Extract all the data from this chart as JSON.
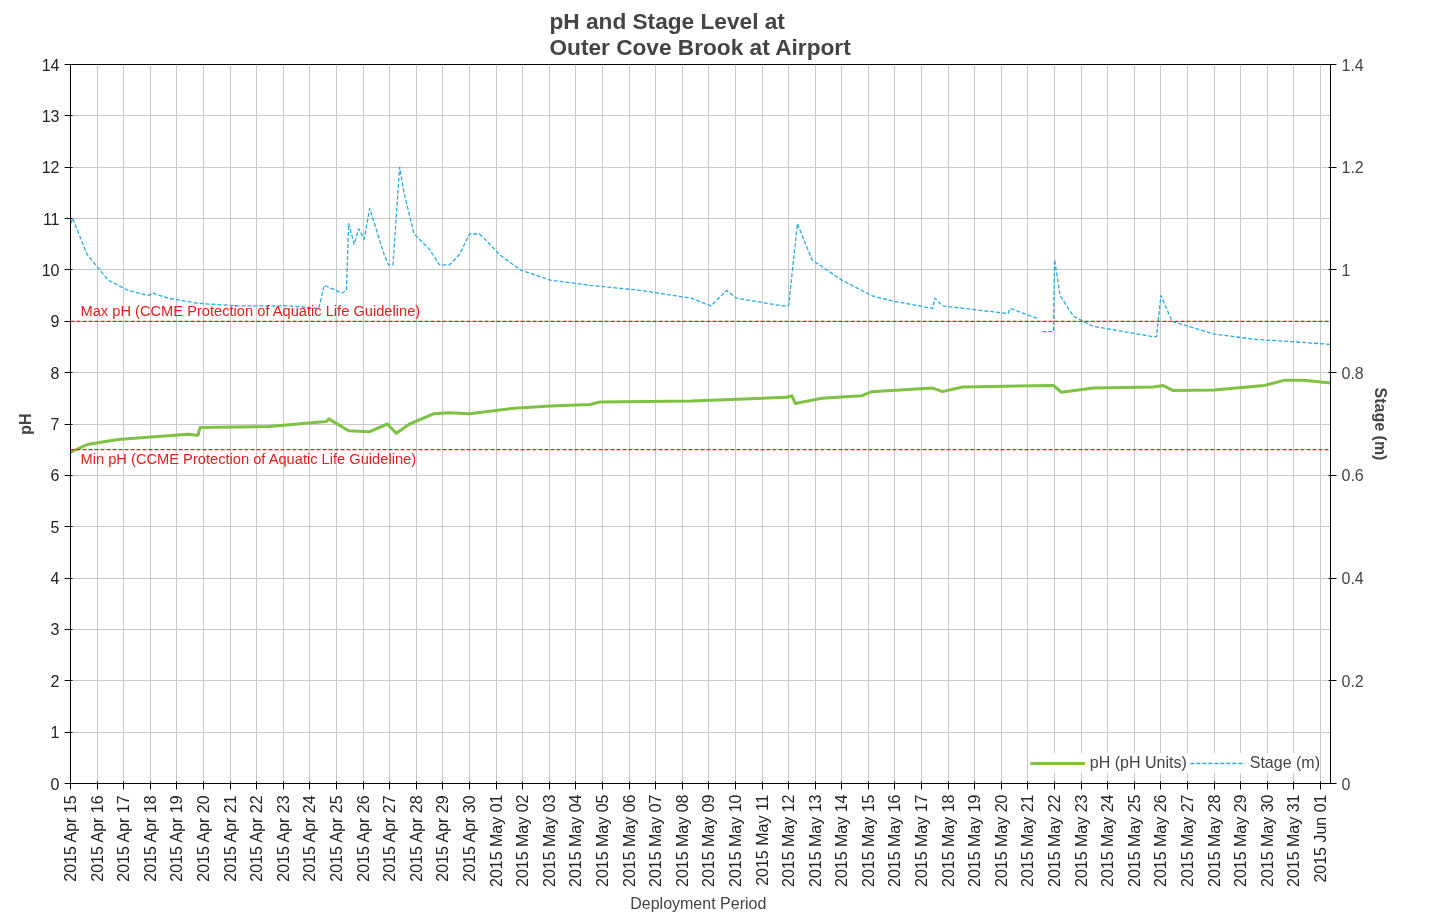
{
  "chart_data": {
    "type": "line",
    "title": "pH and Stage Level at\nOuter Cove Brook at Airport",
    "xlabel": "Deployment  Period",
    "ylabel": "pH",
    "y2label": "Stage (m)",
    "xlim": [
      "2015-04-15",
      "2015-06-01T09:00"
    ],
    "ylim": [
      0,
      14
    ],
    "y2lim": [
      0,
      1.4
    ],
    "yticks": [
      0,
      1,
      2,
      3,
      4,
      5,
      6,
      7,
      8,
      9,
      10,
      11,
      12,
      13,
      14
    ],
    "y2ticks": [
      0,
      0.2,
      0.4,
      0.6,
      0.8,
      1,
      1.2,
      1.4
    ],
    "xticks": [
      {
        "value": "2015-04-15",
        "label": "2015 Apr 15"
      },
      {
        "value": "2015-04-16",
        "label": "2015 Apr 16"
      },
      {
        "value": "2015-04-17",
        "label": "2015 Apr 17"
      },
      {
        "value": "2015-04-18",
        "label": "2015 Apr 18"
      },
      {
        "value": "2015-04-19",
        "label": "2015 Apr 19"
      },
      {
        "value": "2015-04-20",
        "label": "2015 Apr 20"
      },
      {
        "value": "2015-04-21",
        "label": "2015 Apr 21"
      },
      {
        "value": "2015-04-22",
        "label": "2015 Apr 22"
      },
      {
        "value": "2015-04-23",
        "label": "2015 Apr 23"
      },
      {
        "value": "2015-04-24",
        "label": "2015 Apr 24"
      },
      {
        "value": "2015-04-25",
        "label": "2015 Apr 25"
      },
      {
        "value": "2015-04-26",
        "label": "2015 Apr 26"
      },
      {
        "value": "2015-04-27",
        "label": "2015 Apr 27"
      },
      {
        "value": "2015-04-28",
        "label": "2015 Apr 28"
      },
      {
        "value": "2015-04-29",
        "label": "2015 Apr 29"
      },
      {
        "value": "2015-04-30",
        "label": "2015 Apr 30"
      },
      {
        "value": "2015-05-01",
        "label": "2015 May 01"
      },
      {
        "value": "2015-05-02",
        "label": "2015 May 02"
      },
      {
        "value": "2015-05-03",
        "label": "2015 May 03"
      },
      {
        "value": "2015-05-04",
        "label": "2015 May 04"
      },
      {
        "value": "2015-05-05",
        "label": "2015 May 05"
      },
      {
        "value": "2015-05-06",
        "label": "2015 May 06"
      },
      {
        "value": "2015-05-07",
        "label": "2015 May 07"
      },
      {
        "value": "2015-05-08",
        "label": "2015 May 08"
      },
      {
        "value": "2015-05-09",
        "label": "2015 May 09"
      },
      {
        "value": "2015-05-10",
        "label": "2015 May 10"
      },
      {
        "value": "2015-05-11",
        "label": "2015 May 11"
      },
      {
        "value": "2015-05-12",
        "label": "2015 May 12"
      },
      {
        "value": "2015-05-13",
        "label": "2015 May 13"
      },
      {
        "value": "2015-05-14",
        "label": "2015 May 14"
      },
      {
        "value": "2015-05-15",
        "label": "2015 May 15"
      },
      {
        "value": "2015-05-16",
        "label": "2015 May 16"
      },
      {
        "value": "2015-05-17",
        "label": "2015 May 17"
      },
      {
        "value": "2015-05-18",
        "label": "2015 May 18"
      },
      {
        "value": "2015-05-19",
        "label": "2015 May 19"
      },
      {
        "value": "2015-05-20",
        "label": "2015 May 20"
      },
      {
        "value": "2015-05-21",
        "label": "2015 May 21"
      },
      {
        "value": "2015-05-22",
        "label": "2015 May 22"
      },
      {
        "value": "2015-05-23",
        "label": "2015 May 23"
      },
      {
        "value": "2015-05-24",
        "label": "2015 May 24"
      },
      {
        "value": "2015-05-25",
        "label": "2015 May 25"
      },
      {
        "value": "2015-05-26",
        "label": "2015 May 26"
      },
      {
        "value": "2015-05-27",
        "label": "2015 May 27"
      },
      {
        "value": "2015-05-28",
        "label": "2015 May 28"
      },
      {
        "value": "2015-05-29",
        "label": "2015 May 29"
      },
      {
        "value": "2015-05-30",
        "label": "2015 May 30"
      },
      {
        "value": "2015-05-31",
        "label": "2015 May 31"
      },
      {
        "value": "2015-06-01",
        "label": "2015 Jun 01"
      }
    ],
    "grid": true,
    "legend": "bottom right",
    "series": [
      {
        "name": "pH (pH Units)",
        "color": "#7dc242",
        "line_style": "solid",
        "x": [
          "2015-04-15T00:00",
          "2015-04-15T15:00",
          "2015-04-16T19:00",
          "2015-04-19T10:00",
          "2015-04-19T19:00",
          "2015-04-19T21:00",
          "2015-04-22T11:00",
          "2015-04-23T23:00",
          "2015-04-24T15:00",
          "2015-04-24T17:00",
          "2015-04-25T11:00",
          "2015-04-26T06:00",
          "2015-04-26T22:00",
          "2015-04-27T06:00",
          "2015-04-27T18:00",
          "2015-04-28T16:00",
          "2015-04-29T06:00",
          "2015-04-30T00:00",
          "2015-05-01T13:00",
          "2015-05-03T01:00",
          "2015-05-04T13:00",
          "2015-05-04T22:00",
          "2015-05-08T08:00",
          "2015-05-11T22:00",
          "2015-05-12T03:00",
          "2015-05-12T06:00",
          "2015-05-13T06:00",
          "2015-05-14T18:00",
          "2015-05-15T03:00",
          "2015-05-17T10:00",
          "2015-05-17T19:00",
          "2015-05-18T13:00",
          "2015-05-21T23:00",
          "2015-05-22T06:00",
          "2015-05-23T11:00",
          "2015-05-25T17:00",
          "2015-05-26T02:00",
          "2015-05-26T11:00",
          "2015-05-28T00:00",
          "2015-05-29T21:00",
          "2015-05-30T15:00",
          "2015-05-31T09:00",
          "2015-06-01T09:00"
        ],
        "values": [
          6.45,
          6.6,
          6.7,
          6.8,
          6.78,
          6.93,
          6.95,
          7.02,
          7.05,
          7.1,
          6.87,
          6.85,
          7.0,
          6.82,
          7.0,
          7.2,
          7.22,
          7.2,
          7.3,
          7.35,
          7.38,
          7.43,
          7.45,
          7.52,
          7.55,
          7.4,
          7.5,
          7.55,
          7.63,
          7.7,
          7.63,
          7.72,
          7.75,
          7.62,
          7.7,
          7.72,
          7.75,
          7.65,
          7.66,
          7.75,
          7.85,
          7.85,
          7.8
        ]
      },
      {
        "name": "Stage (m)",
        "color": "#29abe2",
        "line_style": "dashed",
        "axis": "y2",
        "x": [
          "2015-04-15T00:00",
          "2015-04-15T02:00",
          "2015-04-15T15:00",
          "2015-04-16T10:00",
          "2015-04-17T04:00",
          "2015-04-17T22:00",
          "2015-04-18T02:00",
          "2015-04-18T16:00",
          "2015-04-19T19:00",
          "2015-04-21T07:00",
          "2015-04-23T05:00",
          "2015-04-24T08:00",
          "2015-04-24T13:00",
          "2015-04-25T05:00",
          "2015-04-25T09:00",
          "2015-04-25T11:00",
          "2015-04-25T16:00",
          "2015-04-25T20:00",
          "2015-04-26T01:00",
          "2015-04-26T06:00",
          "2015-04-26T19:00",
          "2015-04-26T23:00",
          "2015-04-27T03:00",
          "2015-04-27T09:00",
          "2015-04-27T13:00",
          "2015-04-27T22:00",
          "2015-04-28T12:00",
          "2015-04-28T21:00",
          "2015-04-29T06:00",
          "2015-04-29T15:00",
          "2015-04-30T00:00",
          "2015-04-30T09:00",
          "2015-04-30T14:00",
          "2015-05-01T03:00",
          "2015-05-01T22:00",
          "2015-05-03T01:00",
          "2015-05-04T13:00",
          "2015-05-06T11:00",
          "2015-05-08T08:00",
          "2015-05-09T02:00",
          "2015-05-09T16:00",
          "2015-05-10T01:00",
          "2015-05-11T18:00",
          "2015-05-12T00:00",
          "2015-05-12T08:00",
          "2015-05-12T21:00",
          "2015-05-14T00:00",
          "2015-05-15T03:00",
          "2015-05-15T21:00",
          "2015-05-17T10:00",
          "2015-05-17T12:00",
          "2015-05-17T19:00",
          "2015-05-20T06:00",
          "2015-05-20T08:00",
          "2015-05-21T09:00",
          "2015-05-21T11:00",
          "2015-05-21T13:00",
          "2015-05-21T23:00",
          "2015-05-22T00:00",
          "2015-05-22T05:00",
          "2015-05-22T17:00",
          "2015-05-23T11:00",
          "2015-05-25T17:00",
          "2015-05-25T20:00",
          "2015-05-26T00:00",
          "2015-05-26T10:00",
          "2015-05-28T00:00",
          "2015-05-29T12:00",
          "2015-05-31T00:00",
          "2015-06-01T09:00"
        ],
        "values": [
          1.09,
          1.1,
          1.03,
          0.98,
          0.96,
          0.95,
          0.955,
          0.945,
          0.935,
          0.93,
          0.93,
          0.925,
          0.97,
          0.955,
          0.96,
          1.09,
          1.05,
          1.08,
          1.06,
          1.12,
          1.03,
          1.01,
          1.01,
          1.2,
          1.15,
          1.07,
          1.04,
          1.01,
          1.01,
          1.03,
          1.07,
          1.07,
          1.06,
          1.03,
          1.0,
          0.98,
          0.97,
          0.96,
          0.945,
          0.93,
          0.96,
          0.945,
          0.93,
          0.93,
          1.09,
          1.02,
          0.98,
          0.95,
          0.94,
          0.925,
          0.945,
          0.93,
          0.915,
          0.925,
          0.905,
          null,
          0.88,
          0.88,
          1.02,
          0.95,
          0.91,
          0.89,
          0.87,
          0.87,
          0.95,
          0.9,
          0.875,
          0.865,
          0.86,
          0.855
        ]
      }
    ],
    "ref_lines": [
      {
        "axis": "y",
        "value": 9,
        "label": "Max pH  (CCME  Protection of Aquatic Life Guideline)",
        "color": "#e02020",
        "line_style": "dashed"
      },
      {
        "axis": "y",
        "value": 6.5,
        "label": "Min pH  (CCME  Protection of Aquatic Life Guideline)",
        "color": "#e02020",
        "line_style": "dashed"
      }
    ]
  }
}
